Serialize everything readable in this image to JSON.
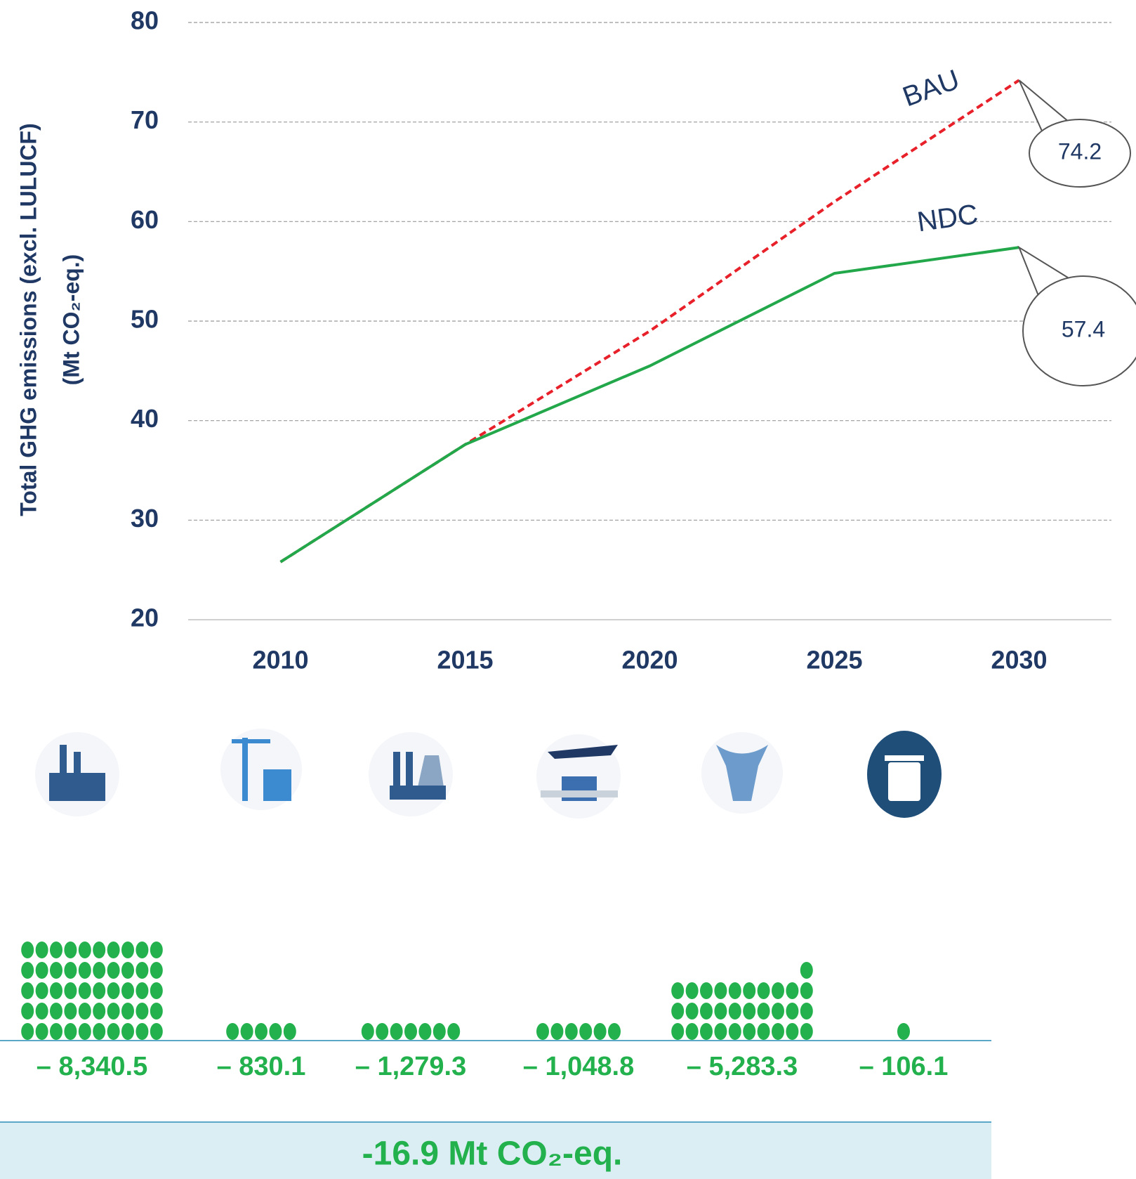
{
  "chart_data": {
    "type": "line",
    "ylabel": [
      "Total GHG emissions (excl. LULUCF)",
      "(Mt CO₂-eq.)"
    ],
    "x": [
      2010,
      2015,
      2020,
      2025,
      2030
    ],
    "xlim": [
      2007.5,
      2032.5
    ],
    "xticks": [
      2010,
      2015,
      2020,
      2025,
      2030
    ],
    "ylim": [
      20,
      80
    ],
    "yticks": [
      20,
      30,
      40,
      50,
      60,
      70,
      80
    ],
    "grid": true,
    "series": [
      {
        "name": "BAU",
        "color": "#e8202a",
        "dashed": true,
        "values": [
          25.8,
          37.6,
          49,
          62,
          74.2
        ]
      },
      {
        "name": "NDC",
        "color": "#22a84a",
        "dashed": false,
        "values": [
          25.8,
          37.6,
          45.5,
          54.8,
          57.4
        ]
      }
    ]
  },
  "sectors": {
    "values": [
      -8340.5,
      -830.1,
      -1279.3,
      -1048.8,
      -5283.3,
      -106.1
    ],
    "value_labels": [
      "– 8,340.5",
      "– 830.1",
      "– 1,279.3",
      "– 1,048.8",
      "– 5,283.3",
      "– 106.1"
    ],
    "dots": [
      50,
      5,
      7,
      6,
      31,
      1
    ],
    "color": "#22b14c"
  },
  "total": "-16.9 Mt CO₂-eq."
}
